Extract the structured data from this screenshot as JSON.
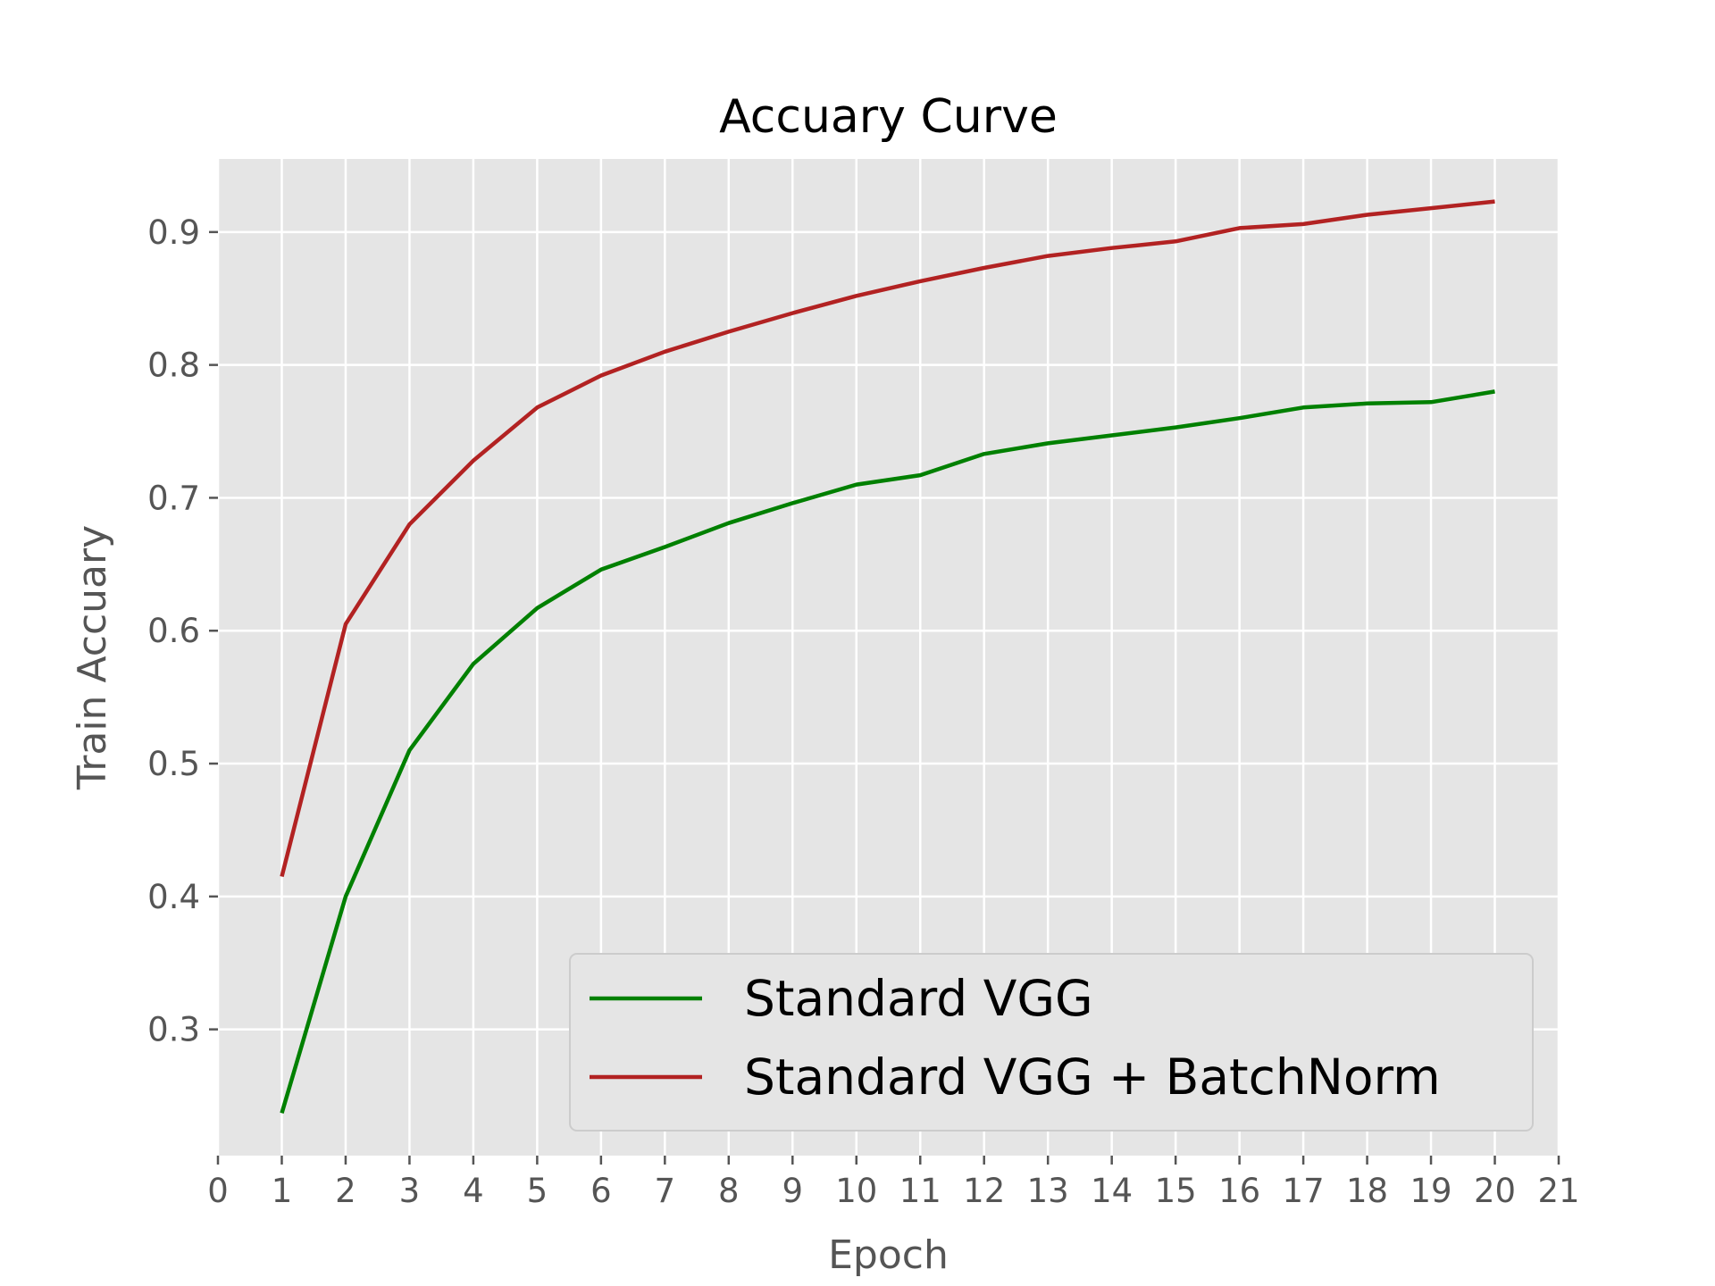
{
  "chart_data": {
    "type": "line",
    "title": "Accuary Curve",
    "xlabel": "Epoch",
    "ylabel": "Train Accuary",
    "xlim": [
      0,
      21
    ],
    "ylim": [
      0.205,
      0.955
    ],
    "xticks": [
      0,
      1,
      2,
      3,
      4,
      5,
      6,
      7,
      8,
      9,
      10,
      11,
      12,
      13,
      14,
      15,
      16,
      17,
      18,
      19,
      20,
      21
    ],
    "xtick_labels": [
      "0",
      "1",
      "2",
      "3",
      "4",
      "5",
      "6",
      "7",
      "8",
      "9",
      "10",
      "11",
      "12",
      "13",
      "14",
      "15",
      "16",
      "17",
      "18",
      "19",
      "20",
      "21"
    ],
    "yticks": [
      0.3,
      0.4,
      0.5,
      0.6,
      0.7,
      0.8,
      0.9
    ],
    "ytick_labels": [
      "0.3",
      "0.4",
      "0.5",
      "0.6",
      "0.7",
      "0.8",
      "0.9"
    ],
    "grid": true,
    "legend_position": "lower-right",
    "background_color": "#e5e5e5",
    "grid_color": "#ffffff",
    "x": [
      1,
      2,
      3,
      4,
      5,
      6,
      7,
      8,
      9,
      10,
      11,
      12,
      13,
      14,
      15,
      16,
      17,
      18,
      19,
      20
    ],
    "series": [
      {
        "name": "Standard VGG",
        "color": "#008000",
        "values": [
          0.237,
          0.4,
          0.51,
          0.575,
          0.617,
          0.646,
          0.663,
          0.681,
          0.696,
          0.71,
          0.717,
          0.733,
          0.741,
          0.747,
          0.753,
          0.76,
          0.768,
          0.771,
          0.772,
          0.78
        ]
      },
      {
        "name": "Standard VGG + BatchNorm",
        "color": "#b22222",
        "values": [
          0.415,
          0.605,
          0.68,
          0.728,
          0.768,
          0.792,
          0.81,
          0.825,
          0.839,
          0.852,
          0.863,
          0.873,
          0.882,
          0.888,
          0.893,
          0.903,
          0.906,
          0.913,
          0.918,
          0.923
        ]
      }
    ]
  }
}
